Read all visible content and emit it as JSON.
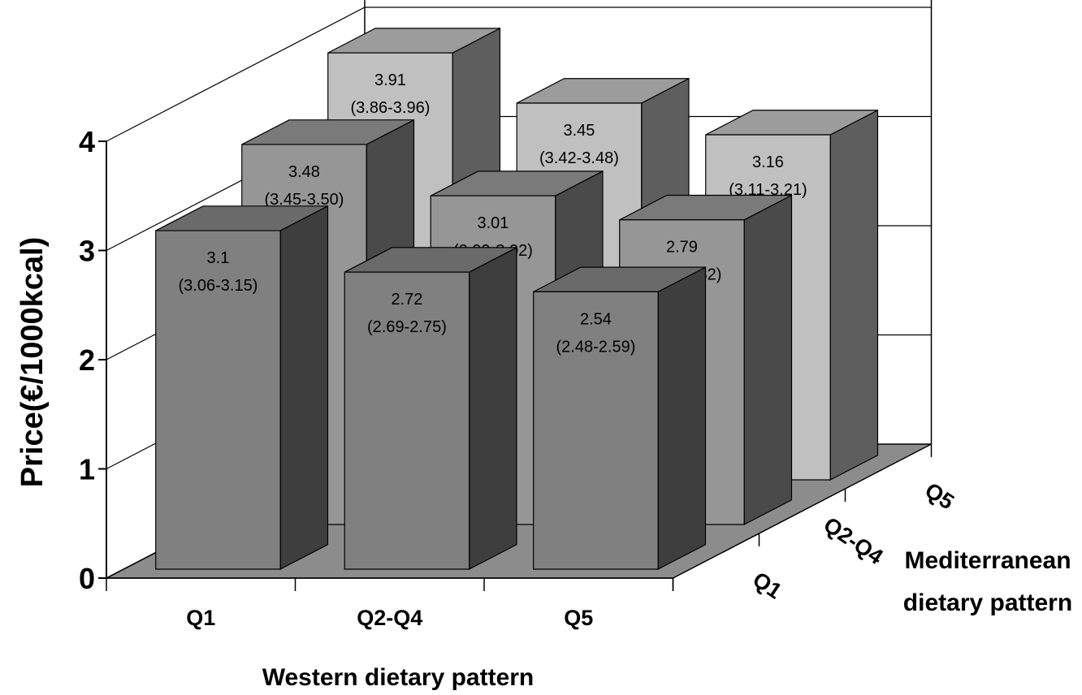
{
  "chart_data": {
    "type": "bar",
    "subtype": "3d-grouped",
    "title": "",
    "ylabel": "Price(€/1000kcal)",
    "xlabel": "Western dietary pattern",
    "zlabel_lines": [
      "Mediterranean",
      "dietary pattern"
    ],
    "ylim": [
      0,
      4
    ],
    "yticks": [
      "0",
      "1",
      "2",
      "3",
      "4"
    ],
    "x_categories": [
      "Q1",
      "Q2-Q4",
      "Q5"
    ],
    "z_categories": [
      "Q1",
      "Q2-Q4",
      "Q5"
    ],
    "series": [
      {
        "z": "Q5",
        "values": [
          3.91,
          3.45,
          3.16
        ],
        "ci": [
          "(3.86-3.96)",
          "(3.42-3.48)",
          "(3.11-3.21)"
        ],
        "labels": [
          "3.91",
          "3.45",
          "3.16"
        ]
      },
      {
        "z": "Q2-Q4",
        "values": [
          3.48,
          3.01,
          2.79
        ],
        "ci": [
          "(3.45-3.50)",
          "(2.99-3.02)",
          "(2.76-2.82)"
        ],
        "labels": [
          "3.48",
          "3.01",
          "2.79"
        ]
      },
      {
        "z": "Q1",
        "values": [
          3.1,
          2.72,
          2.54
        ],
        "ci": [
          "(3.06-3.15)",
          "(2.69-2.75)",
          "(2.48-2.59)"
        ],
        "labels": [
          "3.1",
          "2.72",
          "2.54"
        ]
      }
    ],
    "grid": true,
    "colors": {
      "front_face": [
        "#c0c0c0",
        "#969696",
        "#808080"
      ],
      "top_face": [
        "#9c9c9c",
        "#7a7a7a",
        "#6a6a6a"
      ],
      "side_face": [
        "#5e5e5e",
        "#4a4a4a",
        "#3e3e3e"
      ],
      "floor": "#8c8c8c"
    }
  }
}
